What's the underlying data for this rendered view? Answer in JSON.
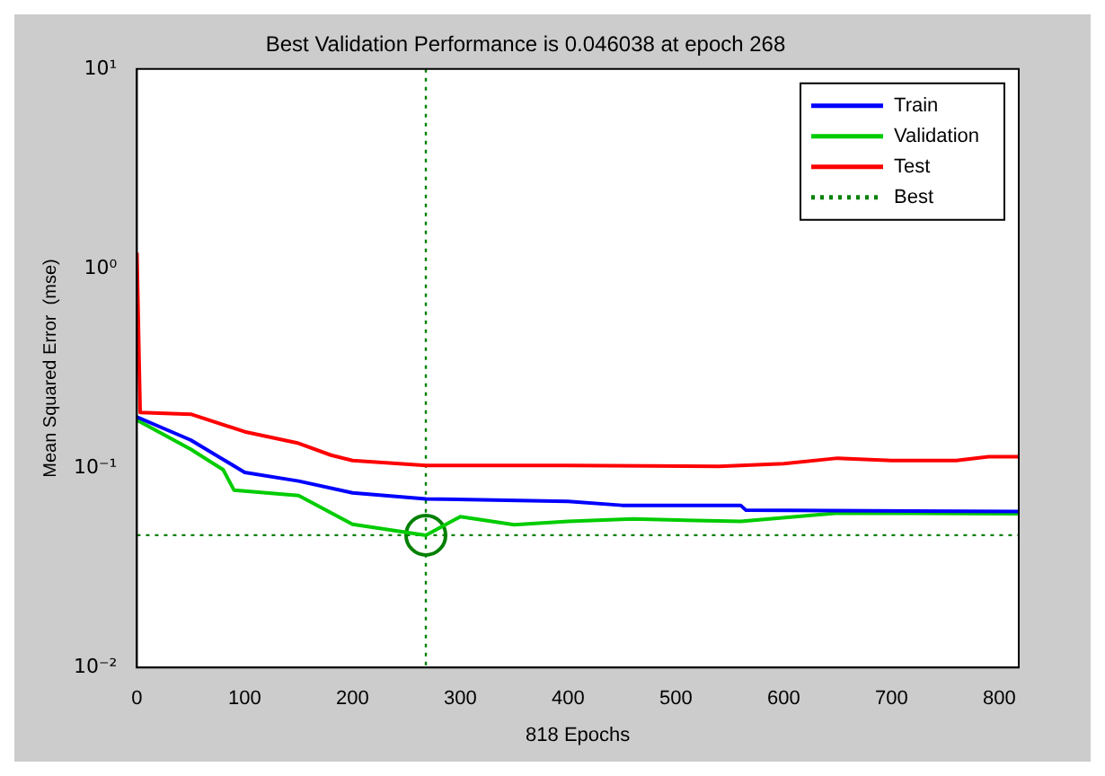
{
  "chart_data": {
    "type": "line",
    "title": "Best Validation Performance is 0.046038 at epoch 268",
    "xlabel": "818 Epochs",
    "ylabel": "Mean Squared Error  (mse)",
    "log": "y",
    "grid": false,
    "legend": "top right",
    "line_style": "solid",
    "marker": "none",
    "xlim": [
      0,
      818
    ],
    "xticks": [
      0,
      100,
      200,
      300,
      400,
      500,
      600,
      700,
      800
    ],
    "ylim": [
      0.01,
      10
    ],
    "yticks": [
      {
        "value": 0.01,
        "label": "10⁻²"
      },
      {
        "value": 0.1,
        "label": "10⁻¹"
      },
      {
        "value": 1,
        "label": "10⁰"
      },
      {
        "value": 10,
        "label": "10¹"
      }
    ],
    "series": [
      {
        "name": "Train",
        "color": "#0000ff",
        "x": [
          0,
          50,
          100,
          150,
          200,
          268,
          400,
          450,
          560,
          565,
          818
        ],
        "values": [
          0.18,
          0.138,
          0.095,
          0.086,
          0.075,
          0.07,
          0.068,
          0.065,
          0.065,
          0.0614,
          0.0606
        ]
      },
      {
        "name": "Validation",
        "color": "#00cc00",
        "x": [
          0,
          50,
          80,
          90,
          150,
          200,
          268,
          300,
          350,
          400,
          460,
          560,
          650,
          818
        ],
        "values": [
          0.174,
          0.124,
          0.098,
          0.0775,
          0.0727,
          0.0522,
          0.046,
          0.057,
          0.052,
          0.054,
          0.0555,
          0.054,
          0.0594,
          0.059
        ]
      },
      {
        "name": "Test",
        "color": "#ff0000",
        "x": [
          0,
          3,
          50,
          100,
          150,
          180,
          200,
          268,
          400,
          540,
          600,
          650,
          700,
          760,
          790,
          818
        ],
        "values": [
          1.2,
          0.19,
          0.186,
          0.152,
          0.133,
          0.116,
          0.109,
          0.103,
          0.103,
          0.102,
          0.105,
          0.112,
          0.109,
          0.109,
          0.114,
          0.114
        ]
      },
      {
        "name": "Best",
        "type": "scatter",
        "color": "#008000",
        "marker": "circle",
        "line_style": "dotted",
        "x": [
          268
        ],
        "values": [
          0.046038
        ]
      }
    ],
    "ref_lines": [
      {
        "axis": "x",
        "value": 268,
        "color": "#008000",
        "line_style": "dotted"
      },
      {
        "axis": "y",
        "value": 0.046038,
        "color": "#008000",
        "line_style": "dotted"
      }
    ]
  }
}
